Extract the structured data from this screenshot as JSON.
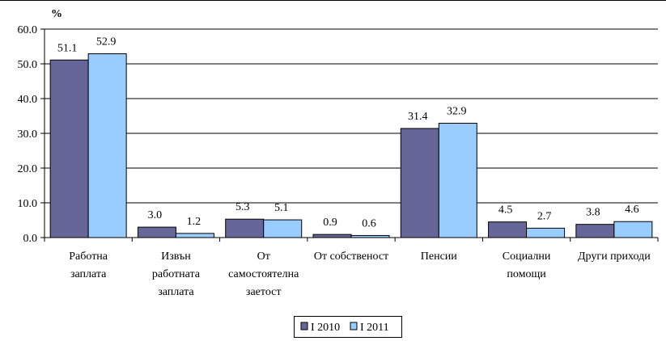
{
  "chart_data": {
    "type": "bar",
    "ylabel": "%",
    "ylim": [
      0,
      60
    ],
    "yticks": [
      "0.0",
      "10.0",
      "20.0",
      "30.0",
      "40.0",
      "50.0",
      "60.0"
    ],
    "ytick_values": [
      0,
      10,
      20,
      30,
      40,
      50,
      60
    ],
    "grid": true,
    "legend_position": "bottom-center",
    "categories": [
      [
        "Работна",
        "заплата"
      ],
      [
        "Извън",
        "работната",
        "заплата"
      ],
      [
        "От",
        "самостоятелна",
        "заетост"
      ],
      [
        "От собственост"
      ],
      [
        "Пенсии"
      ],
      [
        "Социални",
        "помощи"
      ],
      [
        "Други приходи"
      ]
    ],
    "series": [
      {
        "name": "I 2010",
        "color": "#666699",
        "values": [
          51.1,
          3.0,
          5.3,
          0.9,
          31.4,
          4.5,
          3.8
        ],
        "labels": [
          "51.1",
          "3.0",
          "5.3",
          "0.9",
          "31.4",
          "4.5",
          "3.8"
        ]
      },
      {
        "name": "I 2011",
        "color": "#99ccff",
        "values": [
          52.9,
          1.2,
          5.1,
          0.6,
          32.9,
          2.7,
          4.6
        ],
        "labels": [
          "52.9",
          "1.2",
          "5.1",
          "0.6",
          "32.9",
          "2.7",
          "4.6"
        ]
      }
    ]
  }
}
